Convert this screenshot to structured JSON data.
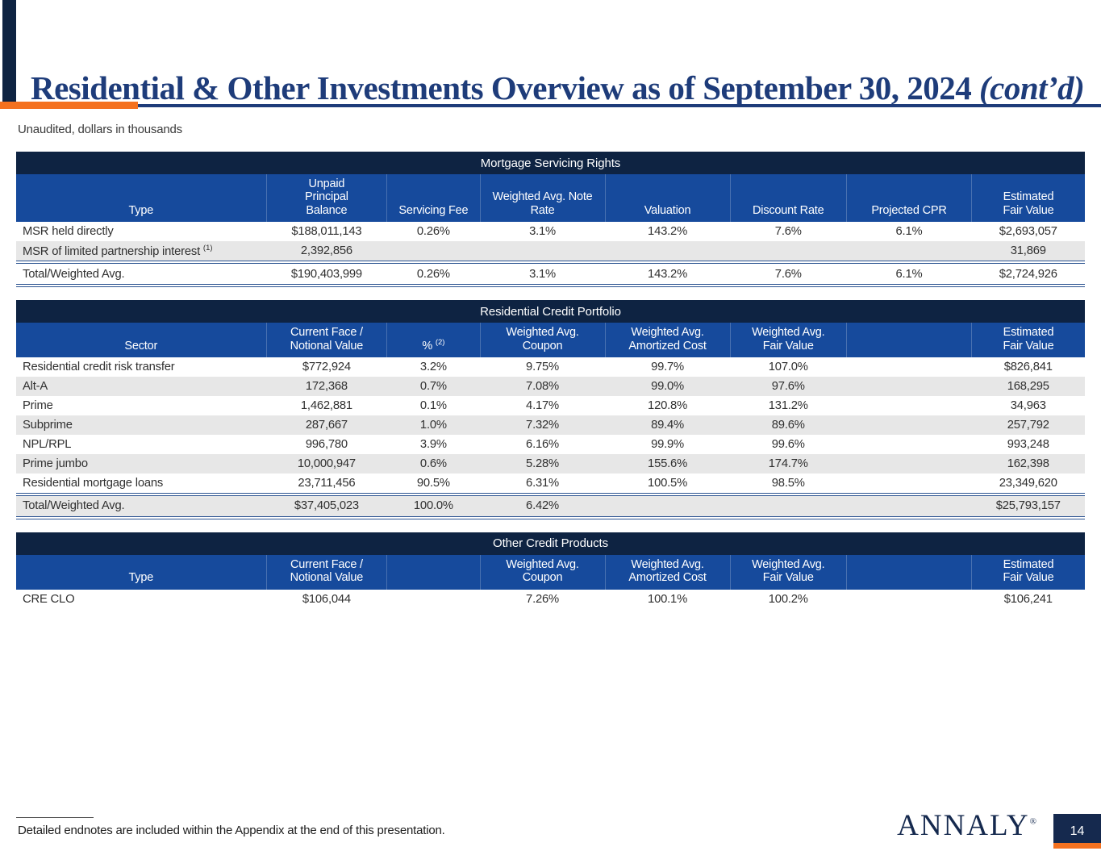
{
  "slide": {
    "title": "Residential & Other Investments Overview as of September 30, 2024 ",
    "title_suffix": "(cont’d)",
    "subtitle": "Unaudited, dollars in thousands",
    "footnote": "Detailed endnotes are included within the Appendix at the end of this presentation.",
    "page_number": "14",
    "brand": {
      "name": "ANNALY",
      "mark": "®"
    }
  },
  "colors": {
    "navy_band": "#0e2342",
    "royal_blue": "#164a9c",
    "orange": "#f4711f",
    "row_alt_gray": "#e7e7e7",
    "title_text": "#1e3c7a"
  },
  "tables": [
    {
      "title": "Mortgage Servicing Rights",
      "headers": [
        {
          "label": "Type"
        },
        {
          "label": "Unpaid\nPrincipal\nBalance"
        },
        {
          "label": "Servicing Fee"
        },
        {
          "label": "Weighted Avg. Note\nRate"
        },
        {
          "label": "Valuation"
        },
        {
          "label": "Discount Rate"
        },
        {
          "label": "Projected CPR"
        },
        {
          "label": "Estimated\nFair Value"
        }
      ],
      "rows": [
        {
          "cells": [
            "MSR held directly",
            "$188,011,143",
            "0.26%",
            "3.1%",
            "143.2%",
            "7.6%",
            "6.1%",
            "$2,693,057"
          ]
        },
        {
          "cells": [
            "MSR of limited partnership interest",
            "2,392,856",
            "",
            "",
            "",
            "",
            "",
            "31,869"
          ],
          "label_sup": "(1)"
        }
      ],
      "total": {
        "cells": [
          "Total/Weighted Avg.",
          "$190,403,999",
          "0.26%",
          "3.1%",
          "143.2%",
          "7.6%",
          "6.1%",
          "$2,724,926"
        ]
      }
    },
    {
      "title": "Residential Credit Portfolio",
      "headers": [
        {
          "label": "Sector"
        },
        {
          "label": "Current Face /\nNotional Value"
        },
        {
          "label": "%",
          "sup": "(2)"
        },
        {
          "label": "Weighted Avg.\nCoupon"
        },
        {
          "label": "Weighted Avg.\nAmortized Cost"
        },
        {
          "label": "Weighted Avg.\nFair Value"
        },
        {
          "label": ""
        },
        {
          "label": "Estimated\nFair Value"
        }
      ],
      "rows": [
        {
          "cells": [
            "Residential credit risk transfer",
            "$772,924",
            "3.2%",
            "9.75%",
            "99.7%",
            "107.0%",
            "",
            "$826,841"
          ]
        },
        {
          "cells": [
            "Alt-A",
            "172,368",
            "0.7%",
            "7.08%",
            "99.0%",
            "97.6%",
            "",
            "168,295"
          ]
        },
        {
          "cells": [
            "Prime",
            "1,462,881",
            "0.1%",
            "4.17%",
            "120.8%",
            "131.2%",
            "",
            "34,963"
          ]
        },
        {
          "cells": [
            "Subprime",
            "287,667",
            "1.0%",
            "7.32%",
            "89.4%",
            "89.6%",
            "",
            "257,792"
          ]
        },
        {
          "cells": [
            "NPL/RPL",
            "996,780",
            "3.9%",
            "6.16%",
            "99.9%",
            "99.6%",
            "",
            "993,248"
          ]
        },
        {
          "cells": [
            "Prime jumbo",
            "10,000,947",
            "0.6%",
            "5.28%",
            "155.6%",
            "174.7%",
            "",
            "162,398"
          ]
        },
        {
          "cells": [
            "Residential mortgage loans",
            "23,711,456",
            "90.5%",
            "6.31%",
            "100.5%",
            "98.5%",
            "",
            "23,349,620"
          ]
        }
      ],
      "total": {
        "cells": [
          "Total/Weighted Avg.",
          "$37,405,023",
          "100.0%",
          "6.42%",
          "",
          "",
          "",
          "$25,793,157"
        ]
      }
    },
    {
      "title": "Other Credit Products",
      "headers": [
        {
          "label": "Type"
        },
        {
          "label": "Current Face /\nNotional Value"
        },
        {
          "label": ""
        },
        {
          "label": "Weighted Avg.\nCoupon"
        },
        {
          "label": "Weighted Avg.\nAmortized Cost"
        },
        {
          "label": "Weighted Avg.\nFair Value"
        },
        {
          "label": ""
        },
        {
          "label": "Estimated\nFair Value"
        }
      ],
      "rows": [
        {
          "cells": [
            "CRE CLO",
            "$106,044",
            "",
            "7.26%",
            "100.1%",
            "100.2%",
            "",
            "$106,241"
          ]
        }
      ],
      "total": null
    }
  ]
}
